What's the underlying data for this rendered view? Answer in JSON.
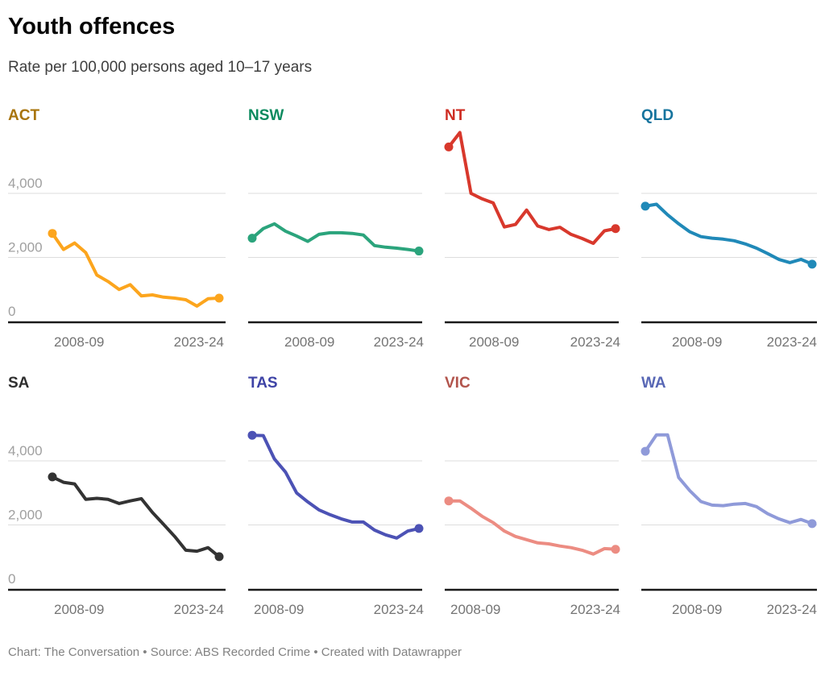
{
  "header": {
    "title": "Youth offences",
    "subtitle": "Rate per 100,000 persons aged 10–17 years"
  },
  "footer": {
    "text": "Chart: The Conversation • Source: ABS Recorded Crime • Created with Datawrapper"
  },
  "chart_data": {
    "type": "line",
    "layout": "small-multiples",
    "title": "Youth offences",
    "subtitle": "Rate per 100,000 persons aged 10–17 years",
    "x": [
      "2008-09",
      "2009-10",
      "2010-11",
      "2011-12",
      "2012-13",
      "2013-14",
      "2014-15",
      "2015-16",
      "2016-17",
      "2017-18",
      "2018-19",
      "2019-20",
      "2020-21",
      "2021-22",
      "2022-23",
      "2023-24"
    ],
    "x_tick_labels": [
      "2008-09",
      "2023-24"
    ],
    "y_ticks": [
      0,
      2000,
      4000
    ],
    "y_tick_labels": [
      "0",
      "2,000",
      "4,000"
    ],
    "ylim": [
      0,
      6100
    ],
    "grid": true,
    "grid_color": "#dddddd",
    "axis_color": "#1a1a1a",
    "y_label_color": "#a0a0a0",
    "x_label_color": "#747474",
    "panels": [
      {
        "state": "ACT",
        "line_color": "#FCA51D",
        "label_color": "#A8740B",
        "values": [
          2750,
          2250,
          2450,
          2150,
          1450,
          1250,
          1000,
          1150,
          800,
          830,
          760,
          730,
          680,
          480,
          710,
          730
        ]
      },
      {
        "state": "NSW",
        "line_color": "#2BA47C",
        "label_color": "#0B8A5E",
        "values": [
          2600,
          2900,
          3050,
          2820,
          2670,
          2500,
          2720,
          2770,
          2770,
          2750,
          2700,
          2370,
          2320,
          2290,
          2250,
          2200
        ]
      },
      {
        "state": "NT",
        "line_color": "#D8382C",
        "label_color": "#CE2C22",
        "values": [
          5450,
          5900,
          4000,
          3830,
          3700,
          2950,
          3030,
          3480,
          2980,
          2870,
          2940,
          2720,
          2590,
          2440,
          2830,
          2900
        ]
      },
      {
        "state": "QLD",
        "line_color": "#2089B8",
        "label_color": "#16749E",
        "values": [
          3600,
          3660,
          3330,
          3050,
          2800,
          2650,
          2600,
          2570,
          2520,
          2420,
          2290,
          2120,
          1940,
          1840,
          1940,
          1790
        ]
      },
      {
        "state": "SA",
        "line_color": "#333333",
        "label_color": "#2E2E2E",
        "values": [
          3500,
          3330,
          3280,
          2800,
          2830,
          2800,
          2670,
          2750,
          2820,
          2390,
          2020,
          1640,
          1210,
          1180,
          1290,
          1010
        ]
      },
      {
        "state": "TAS",
        "line_color": "#4C52B5",
        "label_color": "#3E43A6",
        "values": [
          4800,
          4790,
          4060,
          3650,
          3000,
          2720,
          2470,
          2320,
          2190,
          2090,
          2090,
          1840,
          1690,
          1590,
          1810,
          1890
        ]
      },
      {
        "state": "VIC",
        "line_color": "#EC8C82",
        "label_color": "#B2544C",
        "values": [
          2750,
          2750,
          2520,
          2270,
          2070,
          1810,
          1640,
          1540,
          1440,
          1410,
          1340,
          1290,
          1210,
          1090,
          1260,
          1240
        ]
      },
      {
        "state": "WA",
        "line_color": "#8F9AD9",
        "label_color": "#5867B5",
        "values": [
          4300,
          4810,
          4810,
          3480,
          3070,
          2730,
          2620,
          2600,
          2650,
          2670,
          2570,
          2350,
          2190,
          2070,
          2170,
          2040
        ]
      }
    ]
  }
}
